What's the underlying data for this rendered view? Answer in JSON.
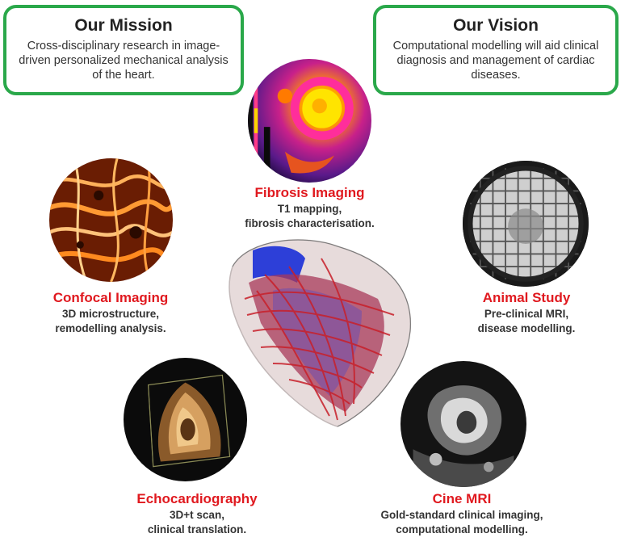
{
  "mission": {
    "title": "Our Mission",
    "text": "Cross-disciplinary research in image-driven personalized mechanical analysis of the heart."
  },
  "vision": {
    "title": "Our Vision",
    "text": "Computational modelling will aid clinical diagnosis and management of cardiac diseases."
  },
  "modalities": {
    "fibrosis": {
      "title": "Fibrosis Imaging",
      "line1": "T1 mapping,",
      "line2": "fibrosis characterisation."
    },
    "confocal": {
      "title": "Confocal Imaging",
      "line1": "3D microstructure,",
      "line2": "remodelling analysis."
    },
    "animal": {
      "title": "Animal Study",
      "line1": "Pre-clinical MRI,",
      "line2": "disease modelling."
    },
    "echo": {
      "title": "Echocardiography",
      "line1": "3D+t scan,",
      "line2": "clinical translation."
    },
    "cine": {
      "title": "Cine MRI",
      "line1": "Gold-standard clinical imaging,",
      "line2": "computational modelling."
    }
  },
  "colors": {
    "frame": "#2aa84a",
    "caption": "#e0191f"
  }
}
